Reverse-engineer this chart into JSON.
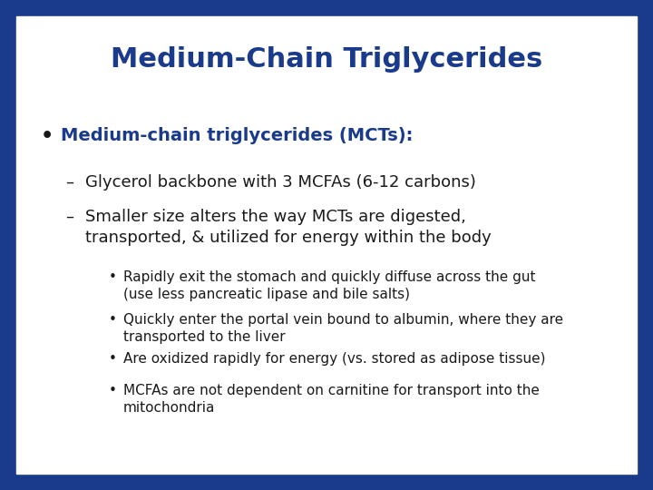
{
  "title": "Medium-Chain Triglycerides",
  "title_color": "#1a3a8c",
  "title_fontsize": 22,
  "background_color": "#ffffff",
  "border_color": "#1a3a8c",
  "text_color": "#1a1a1a",
  "bullet1_bold": "Medium-chain triglycerides (MCTs):",
  "dash1": "Glycerol backbone with 3 MCFAs (6-12 carbons)",
  "dash2_line1": "Smaller size alters the way MCTs are digested,",
  "dash2_line2": "transported, & utilized for energy within the body",
  "sub_bullets": [
    "Rapidly exit the stomach and quickly diffuse across the gut\n(use less pancreatic lipase and bile salts)",
    "Quickly enter the portal vein bound to albumin, where they are\ntransported to the liver",
    "Are oxidized rapidly for energy (vs. stored as adipose tissue)",
    "MCFAs are not dependent on carnitine for transport into the\nmitochondria"
  ],
  "bullet_fontsize": 14,
  "dash_fontsize": 13,
  "sub_fontsize": 11,
  "figsize": [
    7.2,
    5.4
  ],
  "dpi": 100
}
